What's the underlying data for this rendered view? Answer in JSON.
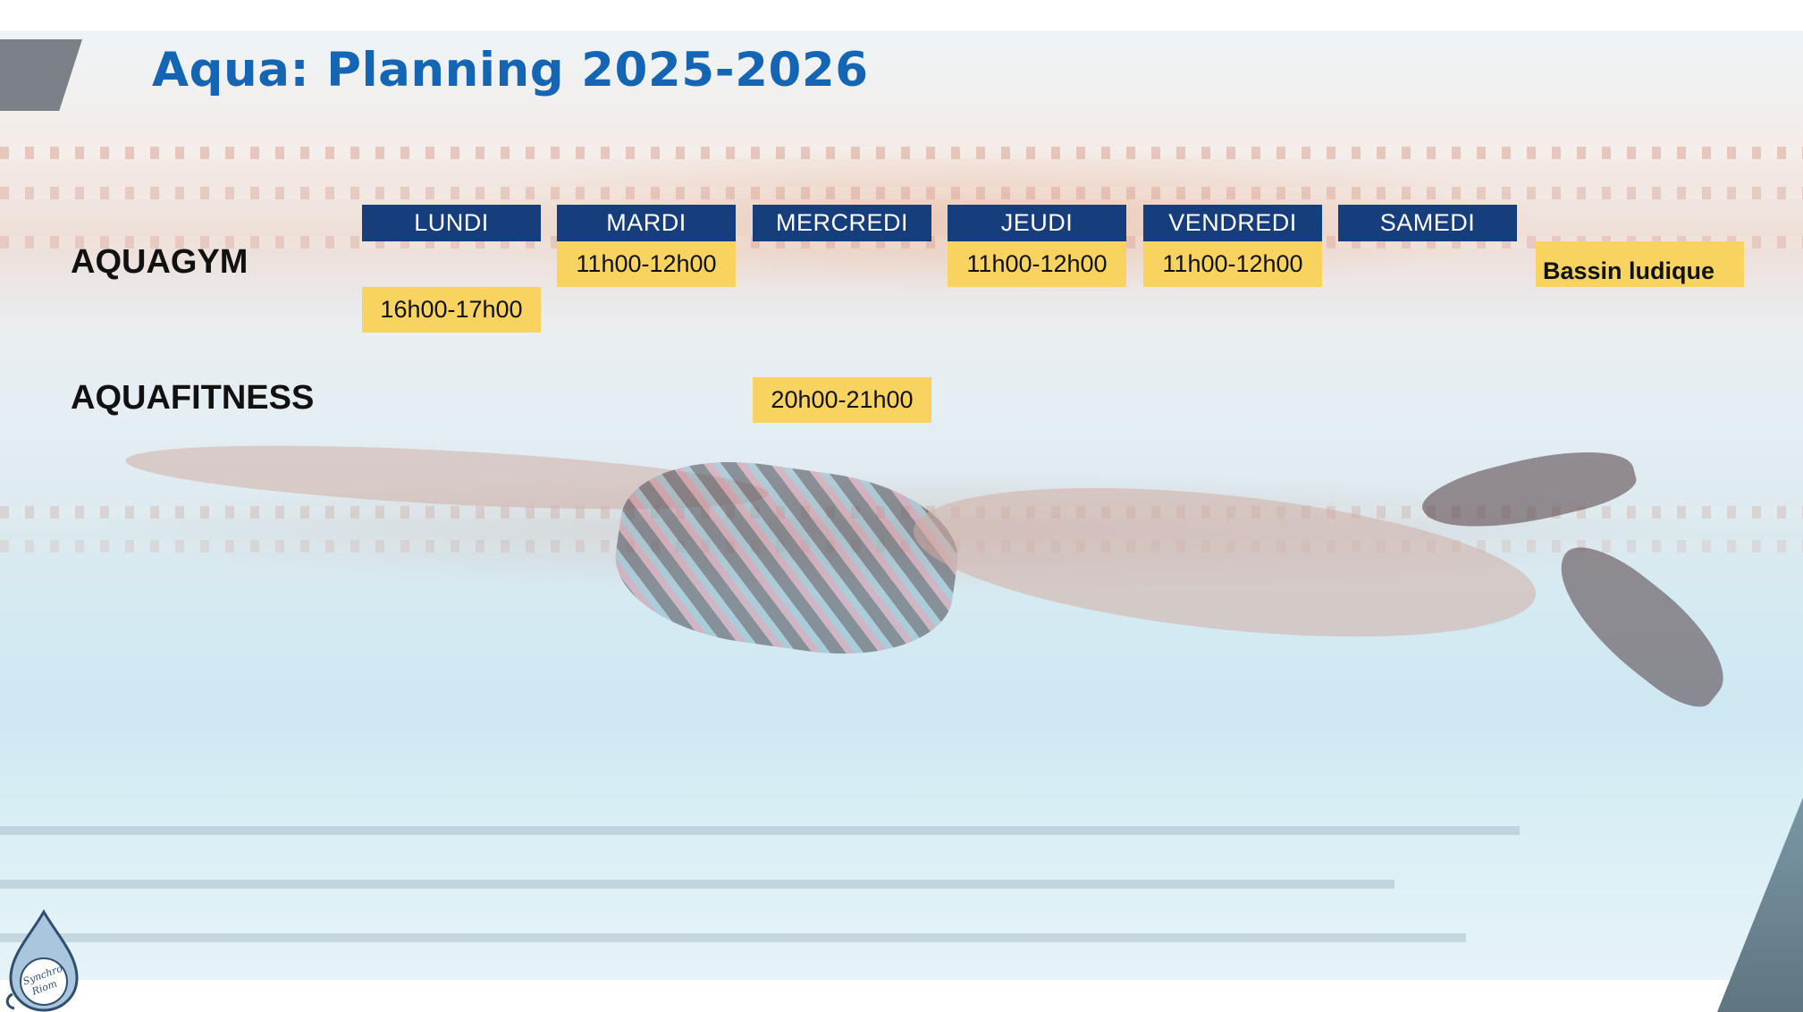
{
  "title": "Aqua: Planning 2025-2026",
  "days": [
    "LUNDI",
    "MARDI",
    "MERCREDI",
    "JEUDI",
    "VENDREDI",
    "SAMEDI"
  ],
  "rows": {
    "aquagym": {
      "label": "AQUAGYM",
      "slots": {
        "lundi": "16h00-17h00",
        "mardi": "11h00-12h00",
        "jeudi": "11h00-12h00",
        "vendredi": "11h00-12h00",
        "samedi": "Bassin ludique"
      }
    },
    "aquafitness": {
      "label": "AQUAFITNESS",
      "slots": {
        "mercredi": "20h00-21h00"
      }
    }
  },
  "logo": {
    "text": "Synchro Riom",
    "icon": "water-drop-mascot-icon"
  },
  "colors": {
    "title": "#1466b5",
    "day_header_bg": "#173e7c",
    "slot_bg": "#f9d35f"
  }
}
